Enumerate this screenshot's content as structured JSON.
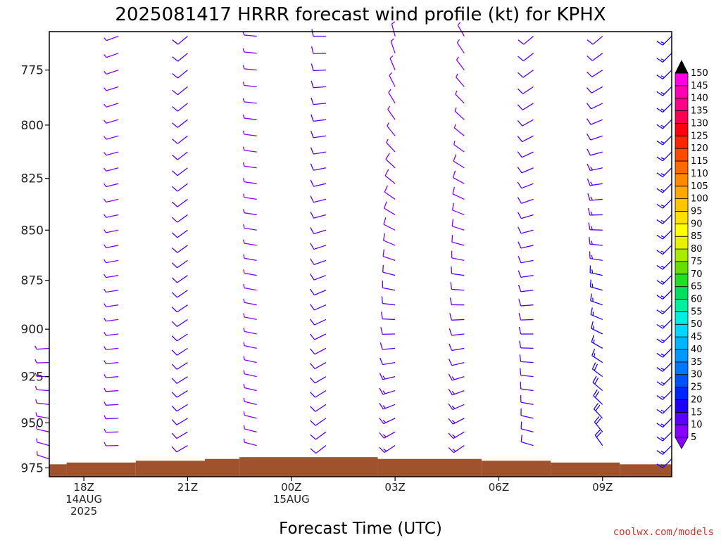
{
  "chart_data": {
    "type": "wind-barb time-height profile",
    "title": "2025081417 HRRR forecast wind profile (kt) for KPHX",
    "xlabel": "Forecast Time (UTC)",
    "y_axis": {
      "ticks": [
        775,
        800,
        825,
        850,
        875,
        900,
        925,
        950,
        975
      ]
    },
    "x_axis": {
      "ticks": [
        {
          "hour": 18,
          "lines": [
            "18Z",
            "14AUG",
            "2025"
          ]
        },
        {
          "hour": 21,
          "lines": [
            "21Z"
          ]
        },
        {
          "hour": 24,
          "lines": [
            "00Z",
            "15AUG"
          ]
        },
        {
          "hour": 27,
          "lines": [
            "03Z"
          ]
        },
        {
          "hour": 30,
          "lines": [
            "06Z"
          ]
        },
        {
          "hour": 33,
          "lines": [
            "09Z"
          ]
        }
      ]
    },
    "surface_pressure": [
      {
        "from": 17,
        "to": 17.5,
        "p": 973
      },
      {
        "from": 17.5,
        "to": 19.5,
        "p": 972
      },
      {
        "from": 19.5,
        "to": 21.5,
        "p": 971
      },
      {
        "from": 21.5,
        "to": 22.5,
        "p": 970
      },
      {
        "from": 22.5,
        "to": 26.5,
        "p": 969
      },
      {
        "from": 26.5,
        "to": 29.5,
        "p": 970
      },
      {
        "from": 29.5,
        "to": 31.5,
        "p": 971
      },
      {
        "from": 31.5,
        "to": 33.5,
        "p": 972
      },
      {
        "from": 33.5,
        "to": 35,
        "p": 973
      }
    ],
    "columns": [
      {
        "hour": 17,
        "p_min": 910,
        "dir_top": 210,
        "dir_bot": 290,
        "spd_top": 5,
        "spd_bot": 5
      },
      {
        "hour": 19,
        "p_min": 758,
        "dir_top": 250,
        "dir_bot": 270,
        "spd_top": 5,
        "spd_bot": 5
      },
      {
        "hour": 21,
        "p_min": 758,
        "dir_top": 230,
        "dir_bot": 240,
        "spd_top": 10,
        "spd_bot": 10
      },
      {
        "hour": 23,
        "p_min": 758,
        "dir_top": 275,
        "dir_bot": 285,
        "spd_top": 5,
        "spd_bot": 5
      },
      {
        "hour": 25,
        "p_min": 758,
        "dir_top": 270,
        "dir_bot": 230,
        "spd_top": 10,
        "spd_bot": 10
      },
      {
        "hour": 27,
        "p_min": 758,
        "dir_top": 345,
        "dir_bot": 230,
        "spd_top": 5,
        "spd_bot": 15
      },
      {
        "hour": 29,
        "p_min": 758,
        "dir_top": 330,
        "dir_bot": 230,
        "spd_top": 5,
        "spd_bot": 15
      },
      {
        "hour": 31,
        "p_min": 758,
        "dir_top": 230,
        "dir_bot": 290,
        "spd_top": 10,
        "spd_bot": 10
      },
      {
        "hour": 33,
        "p_min": 758,
        "dir_top": 230,
        "dir_bot": 330,
        "spd_top": 10,
        "spd_bot": 20
      },
      {
        "hour": 35,
        "p_min": 758,
        "dir_top": 225,
        "dir_bot": 225,
        "spd_top": 15,
        "spd_bot": 15
      }
    ],
    "colorbar": {
      "labels": [
        5,
        10,
        15,
        20,
        25,
        30,
        35,
        40,
        45,
        50,
        55,
        60,
        65,
        70,
        75,
        80,
        85,
        90,
        95,
        100,
        105,
        110,
        115,
        120,
        125,
        130,
        135,
        140,
        145,
        150
      ],
      "colors": [
        "#8a00ff",
        "#5b00ff",
        "#1f00ff",
        "#0026ff",
        "#0052ff",
        "#0077ff",
        "#0099ff",
        "#00b7ff",
        "#00d8ff",
        "#00f0e0",
        "#00f0a0",
        "#00e060",
        "#20e020",
        "#66e000",
        "#a8ec00",
        "#e8f200",
        "#ffff00",
        "#ffe000",
        "#ffc400",
        "#ffa800",
        "#ff8a00",
        "#ff6a00",
        "#ff4a00",
        "#ff2400",
        "#ff0010",
        "#ff0050",
        "#ff0088",
        "#ff00b8",
        "#ff00e0",
        "#000000"
      ]
    }
  },
  "credit": "coolwx.com/models"
}
